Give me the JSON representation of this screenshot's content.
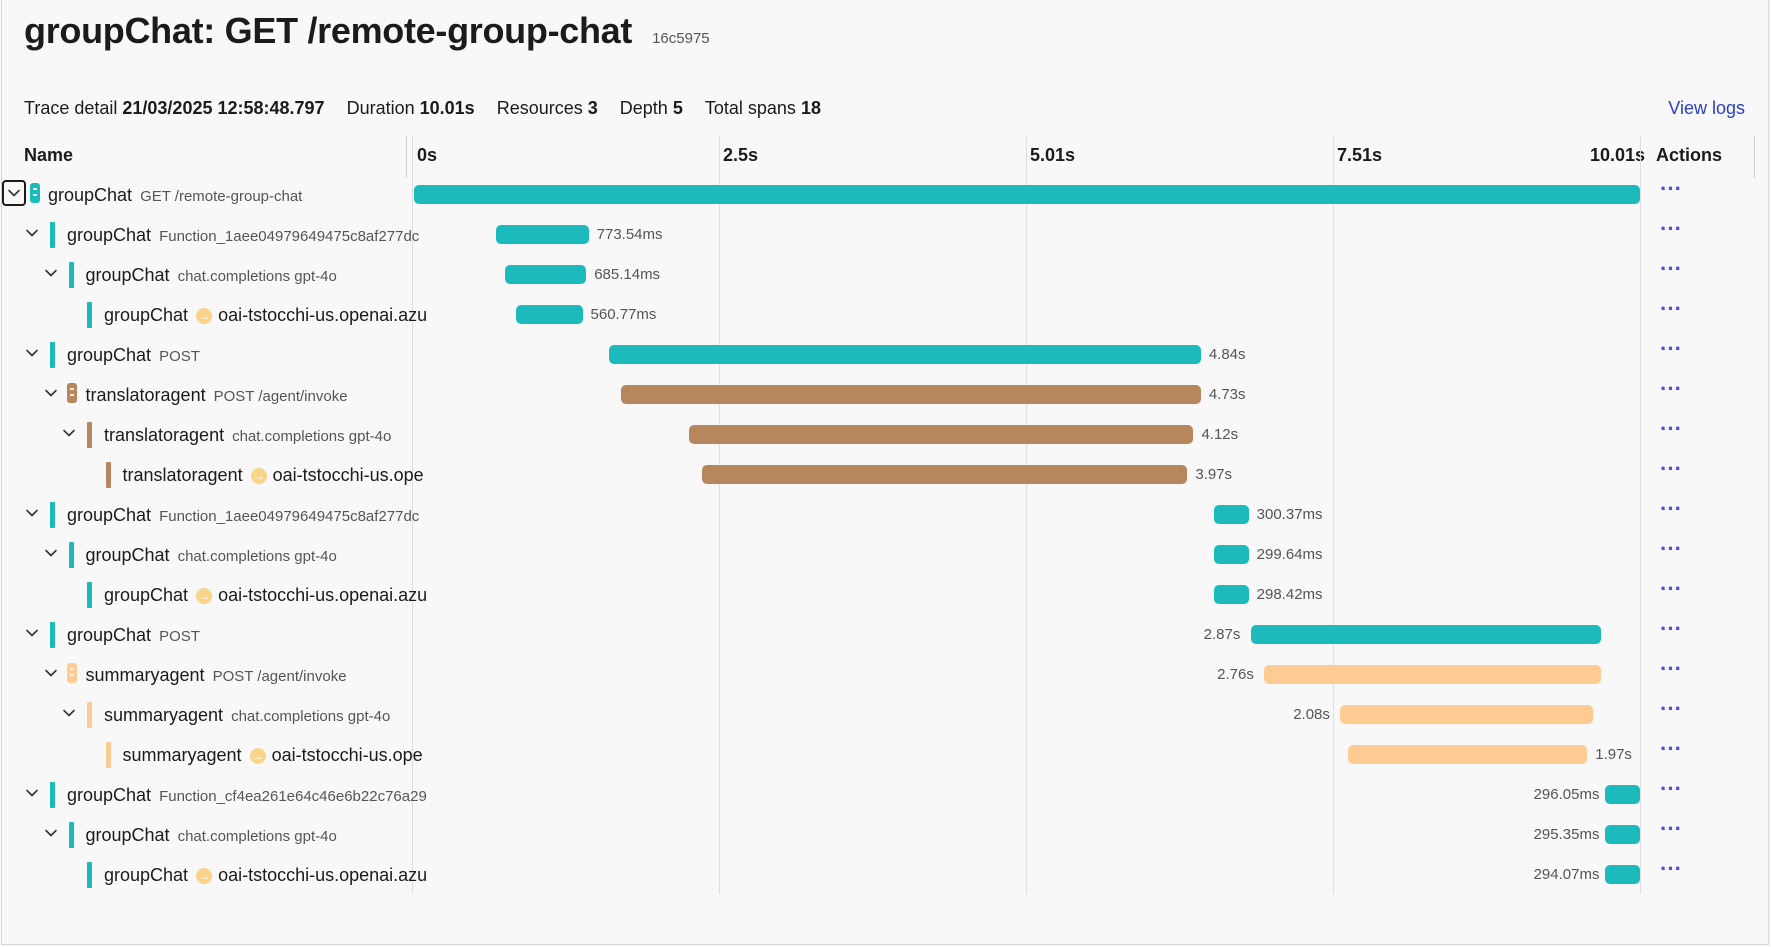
{
  "header": {
    "title": "groupChat: GET /remote-group-chat",
    "trace_id": "16c5975"
  },
  "details": {
    "trace_detail_label": "Trace detail",
    "trace_detail_value": "21/03/2025 12:58:48.797",
    "duration_label": "Duration",
    "duration_value": "10.01s",
    "resources_label": "Resources",
    "resources_value": "3",
    "depth_label": "Depth",
    "depth_value": "5",
    "total_spans_label": "Total spans",
    "total_spans_value": "18",
    "view_logs_label": "View logs"
  },
  "columns": {
    "name": "Name",
    "actions": "Actions",
    "ticks": [
      "0s",
      "2.5s",
      "5.01s",
      "7.51s",
      "10.01s"
    ]
  },
  "colors": {
    "groupChat": "#1cb9bd",
    "translatoragent": "#b8865c",
    "summaryagent": "#ffcb92"
  },
  "timeline_total_seconds": 10.01,
  "spans": [
    {
      "resource": "groupChat",
      "name": "groupChat",
      "sub": "GET /remote-group-chat",
      "depth": 0,
      "kind": "root",
      "start": 0.0,
      "end": 10.01,
      "label": ""
    },
    {
      "resource": "groupChat",
      "name": "groupChat",
      "sub": "Function_1aee04979649475c8af277dc",
      "depth": 1,
      "kind": "parent",
      "start": 0.67,
      "end": 1.44,
      "label": "773.54ms"
    },
    {
      "resource": "groupChat",
      "name": "groupChat",
      "sub": "chat.completions gpt-4o",
      "depth": 2,
      "kind": "parent",
      "start": 0.74,
      "end": 1.42,
      "label": "685.14ms"
    },
    {
      "resource": "groupChat",
      "name": "groupChat",
      "sub": "",
      "dest": "oai-tstocchi-us.openai.azu",
      "depth": 3,
      "kind": "leaf",
      "start": 0.83,
      "end": 1.39,
      "label": "560.77ms"
    },
    {
      "resource": "groupChat",
      "name": "groupChat",
      "sub": "POST",
      "depth": 1,
      "kind": "parent",
      "start": 1.59,
      "end": 6.43,
      "label": "4.84s"
    },
    {
      "resource": "translatoragent",
      "name": "translatoragent",
      "sub": "POST /agent/invoke",
      "depth": 2,
      "kind": "parent-res",
      "start": 1.69,
      "end": 6.43,
      "label": "4.73s"
    },
    {
      "resource": "translatoragent",
      "name": "translatoragent",
      "sub": "chat.completions gpt-4o",
      "depth": 3,
      "kind": "parent",
      "start": 2.24,
      "end": 6.37,
      "label": "4.12s"
    },
    {
      "resource": "translatoragent",
      "name": "translatoragent",
      "sub": "",
      "dest": "oai-tstocchi-us.ope",
      "depth": 4,
      "kind": "leaf",
      "start": 2.35,
      "end": 6.32,
      "label": "3.97s"
    },
    {
      "resource": "groupChat",
      "name": "groupChat",
      "sub": "Function_1aee04979649475c8af277dc",
      "depth": 1,
      "kind": "parent",
      "start": 6.52,
      "end": 6.82,
      "label": "300.37ms"
    },
    {
      "resource": "groupChat",
      "name": "groupChat",
      "sub": "chat.completions gpt-4o",
      "depth": 2,
      "kind": "parent",
      "start": 6.52,
      "end": 6.82,
      "label": "299.64ms"
    },
    {
      "resource": "groupChat",
      "name": "groupChat",
      "sub": "",
      "dest": "oai-tstocchi-us.openai.azu",
      "depth": 3,
      "kind": "leaf",
      "start": 6.52,
      "end": 6.82,
      "label": "298.42ms"
    },
    {
      "resource": "groupChat",
      "name": "groupChat",
      "sub": "POST",
      "depth": 1,
      "kind": "parent",
      "start": 6.82,
      "end": 9.69,
      "label": "2.87s"
    },
    {
      "resource": "summaryagent",
      "name": "summaryagent",
      "sub": "POST /agent/invoke",
      "depth": 2,
      "kind": "parent-res",
      "start": 6.93,
      "end": 9.69,
      "label": "2.76s"
    },
    {
      "resource": "summaryagent",
      "name": "summaryagent",
      "sub": "chat.completions gpt-4o",
      "depth": 3,
      "kind": "parent",
      "start": 7.55,
      "end": 9.63,
      "label": "2.08s"
    },
    {
      "resource": "summaryagent",
      "name": "summaryagent",
      "sub": "",
      "dest": "oai-tstocchi-us.ope",
      "depth": 4,
      "kind": "leaf",
      "start": 7.61,
      "end": 9.58,
      "label": "1.97s"
    },
    {
      "resource": "groupChat",
      "name": "groupChat",
      "sub": "Function_cf4ea261e64c46e6b22c76a29",
      "depth": 1,
      "kind": "parent",
      "start": 9.71,
      "end": 10.01,
      "label": "296.05ms"
    },
    {
      "resource": "groupChat",
      "name": "groupChat",
      "sub": "chat.completions gpt-4o",
      "depth": 2,
      "kind": "parent",
      "start": 9.71,
      "end": 10.01,
      "label": "295.35ms"
    },
    {
      "resource": "groupChat",
      "name": "groupChat",
      "sub": "",
      "dest": "oai-tstocchi-us.openai.azu",
      "depth": 3,
      "kind": "leaf",
      "start": 9.71,
      "end": 10.01,
      "label": "294.07ms"
    }
  ],
  "actions_icon": "more-horizontal-icon",
  "actions_glyph": "···"
}
